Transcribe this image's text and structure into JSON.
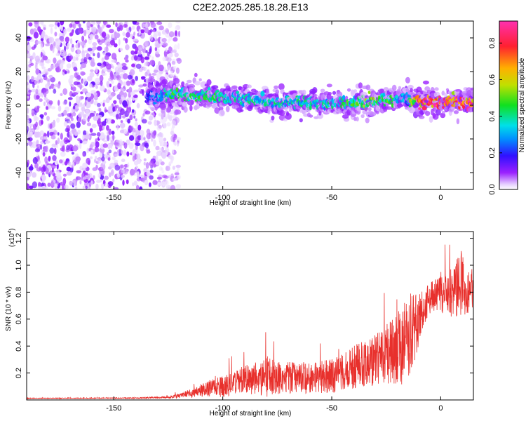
{
  "title": "C2E2.2025.285.18.28.E13",
  "chart_data": [
    {
      "type": "heatmap",
      "xlabel": "Height of straight line (km)",
      "ylabel": "Frequency (Hz)",
      "xlim": [
        -190,
        15
      ],
      "ylim": [
        -50,
        50
      ],
      "x_ticks": [
        -150,
        -100,
        -50,
        0
      ],
      "y_ticks": [
        -40,
        -20,
        0,
        20,
        40
      ],
      "colorbar": {
        "label": "Normalized spectral amplitude",
        "range": [
          0,
          0.92
        ],
        "ticks": [
          "0.0",
          "0.2",
          "0.4",
          "0.6",
          "0.8"
        ],
        "tick_values": [
          0,
          0.2,
          0.4,
          0.6,
          0.8
        ]
      },
      "noise_region": {
        "x_range": [
          -190,
          -122
        ],
        "f_range": [
          -50,
          50
        ]
      },
      "signal_ridge": {
        "x": [
          -135,
          -125,
          -115,
          -105,
          -95,
          -85,
          -75,
          -65,
          -55,
          -45,
          -35,
          -25,
          -15,
          -10,
          0,
          10,
          15
        ],
        "frequency": [
          5,
          6,
          6,
          5,
          4,
          3,
          2,
          1.5,
          1,
          1,
          1.5,
          3,
          4,
          2,
          2,
          2,
          2
        ],
        "amplitude": [
          0.2,
          0.45,
          0.45,
          0.45,
          0.45,
          0.4,
          0.4,
          0.4,
          0.4,
          0.45,
          0.55,
          0.5,
          0.3,
          0.9,
          0.9,
          0.9,
          0.9
        ]
      }
    },
    {
      "type": "line",
      "xlabel": "Height of straight line (km)",
      "ylabel": "SNR (10 * v/v)",
      "y_scale_label": "(x10⁴)",
      "y_scale_base": "(x10",
      "y_scale_exp": "4",
      "y_scale_close": ")",
      "xlim": [
        -190,
        15
      ],
      "ylim": [
        0,
        1.25
      ],
      "x_ticks": [
        -150,
        -100,
        -50,
        0
      ],
      "y_ticks": [
        "0.2",
        "0.4",
        "0.6",
        "0.8",
        "1.0",
        "1.2"
      ],
      "y_tick_values": [
        0.2,
        0.4,
        0.6,
        0.8,
        1.0,
        1.2
      ],
      "color": "#e8302c",
      "series": [
        {
          "x": [
            -190,
            -180,
            -170,
            -160,
            -150,
            -140,
            -130,
            -125,
            -120,
            -115,
            -110,
            -105,
            -100,
            -95,
            -90,
            -85,
            -80,
            -75,
            -70,
            -65,
            -60,
            -55,
            -50,
            -45,
            -40,
            -35,
            -30,
            -25,
            -20,
            -15,
            -12,
            -10,
            -8,
            -5,
            -2,
            0,
            3,
            6,
            9,
            12,
            15
          ],
          "mean": [
            0.012,
            0.012,
            0.013,
            0.013,
            0.014,
            0.014,
            0.018,
            0.02,
            0.03,
            0.05,
            0.07,
            0.09,
            0.1,
            0.13,
            0.15,
            0.16,
            0.17,
            0.16,
            0.17,
            0.16,
            0.16,
            0.17,
            0.18,
            0.2,
            0.24,
            0.27,
            0.3,
            0.34,
            0.38,
            0.45,
            0.55,
            0.62,
            0.68,
            0.75,
            0.78,
            0.8,
            0.78,
            0.8,
            0.85,
            0.8,
            0.8
          ],
          "spread": [
            0.004,
            0.004,
            0.004,
            0.004,
            0.004,
            0.005,
            0.008,
            0.01,
            0.02,
            0.04,
            0.06,
            0.08,
            0.1,
            0.12,
            0.13,
            0.15,
            0.2,
            0.15,
            0.15,
            0.14,
            0.14,
            0.15,
            0.16,
            0.18,
            0.2,
            0.22,
            0.25,
            0.28,
            0.35,
            0.4,
            0.35,
            0.25,
            0.2,
            0.15,
            0.15,
            0.2,
            0.2,
            0.25,
            0.35,
            0.2,
            0.15
          ]
        }
      ]
    }
  ]
}
